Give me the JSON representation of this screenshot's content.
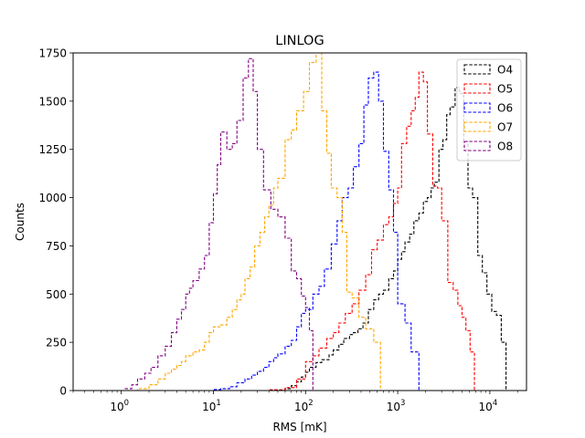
{
  "chart_data": {
    "type": "histogram",
    "title": "LINLOG",
    "xlabel": "RMS [mK]",
    "ylabel": "Counts",
    "x_scale": "log",
    "xlim": [
      0.3,
      25000
    ],
    "ylim": [
      0,
      1750
    ],
    "x_ticks": [
      {
        "value": 1,
        "base": "10",
        "exp": "0"
      },
      {
        "value": 10,
        "base": "10",
        "exp": "1"
      },
      {
        "value": 100,
        "base": "10",
        "exp": "2"
      },
      {
        "value": 1000,
        "base": "10",
        "exp": "3"
      },
      {
        "value": 10000,
        "base": "10",
        "exp": "4"
      }
    ],
    "y_ticks": [
      0,
      250,
      500,
      750,
      1000,
      1250,
      1500,
      1750
    ],
    "grid": false,
    "legend_position": "top-right",
    "line_style": "dashed step",
    "series": [
      {
        "name": "O4",
        "color": "#000000",
        "points": [
          [
            20,
            0
          ],
          [
            40,
            3
          ],
          [
            60,
            10
          ],
          [
            70,
            25
          ],
          [
            80,
            45
          ],
          [
            90,
            70
          ],
          [
            100,
            95
          ],
          [
            110,
            120
          ],
          [
            130,
            145
          ],
          [
            150,
            160
          ],
          [
            180,
            185
          ],
          [
            200,
            210
          ],
          [
            230,
            240
          ],
          [
            260,
            270
          ],
          [
            300,
            290
          ],
          [
            330,
            300
          ],
          [
            370,
            320
          ],
          [
            420,
            350
          ],
          [
            480,
            420
          ],
          [
            550,
            470
          ],
          [
            620,
            500
          ],
          [
            700,
            520
          ],
          [
            800,
            580
          ],
          [
            900,
            620
          ],
          [
            1000,
            680
          ],
          [
            1100,
            720
          ],
          [
            1200,
            770
          ],
          [
            1350,
            810
          ],
          [
            1500,
            880
          ],
          [
            1700,
            920
          ],
          [
            1900,
            980
          ],
          [
            2100,
            1000
          ],
          [
            2300,
            1050
          ],
          [
            2500,
            1080
          ],
          [
            2800,
            1250
          ],
          [
            3100,
            1300
          ],
          [
            3400,
            1430
          ],
          [
            3700,
            1470
          ],
          [
            4200,
            1570
          ],
          [
            4700,
            1540
          ],
          [
            5200,
            1290
          ],
          [
            5800,
            1050
          ],
          [
            6500,
            1000
          ],
          [
            7400,
            700
          ],
          [
            8300,
            610
          ],
          [
            9300,
            500
          ],
          [
            10500,
            410
          ],
          [
            11800,
            390
          ],
          [
            13300,
            250
          ],
          [
            15000,
            0
          ]
        ]
      },
      {
        "name": "O5",
        "color": "#ff0000",
        "points": [
          [
            20,
            0
          ],
          [
            40,
            4
          ],
          [
            60,
            15
          ],
          [
            80,
            60
          ],
          [
            100,
            150
          ],
          [
            120,
            180
          ],
          [
            140,
            220
          ],
          [
            170,
            270
          ],
          [
            200,
            300
          ],
          [
            230,
            350
          ],
          [
            270,
            400
          ],
          [
            320,
            450
          ],
          [
            380,
            520
          ],
          [
            450,
            600
          ],
          [
            520,
            730
          ],
          [
            600,
            780
          ],
          [
            700,
            860
          ],
          [
            800,
            900
          ],
          [
            900,
            970
          ],
          [
            1000,
            1050
          ],
          [
            1100,
            1280
          ],
          [
            1250,
            1370
          ],
          [
            1400,
            1450
          ],
          [
            1550,
            1520
          ],
          [
            1700,
            1650
          ],
          [
            1900,
            1600
          ],
          [
            2100,
            1330
          ],
          [
            2400,
            1060
          ],
          [
            2700,
            1050
          ],
          [
            3000,
            880
          ],
          [
            3500,
            560
          ],
          [
            4000,
            520
          ],
          [
            4500,
            440
          ],
          [
            5000,
            380
          ],
          [
            5500,
            310
          ],
          [
            6100,
            200
          ],
          [
            6800,
            0
          ]
        ]
      },
      {
        "name": "O6",
        "color": "#0000ff",
        "points": [
          [
            5,
            0
          ],
          [
            10,
            5
          ],
          [
            12,
            10
          ],
          [
            15,
            20
          ],
          [
            18,
            40
          ],
          [
            22,
            60
          ],
          [
            26,
            80
          ],
          [
            30,
            100
          ],
          [
            35,
            120
          ],
          [
            40,
            150
          ],
          [
            45,
            170
          ],
          [
            50,
            190
          ],
          [
            60,
            230
          ],
          [
            70,
            260
          ],
          [
            80,
            330
          ],
          [
            90,
            400
          ],
          [
            100,
            420
          ],
          [
            120,
            500
          ],
          [
            140,
            540
          ],
          [
            160,
            630
          ],
          [
            190,
            760
          ],
          [
            220,
            880
          ],
          [
            250,
            1000
          ],
          [
            290,
            1050
          ],
          [
            330,
            1160
          ],
          [
            380,
            1280
          ],
          [
            430,
            1480
          ],
          [
            480,
            1620
          ],
          [
            550,
            1650
          ],
          [
            620,
            1500
          ],
          [
            700,
            1240
          ],
          [
            800,
            1040
          ],
          [
            900,
            820
          ],
          [
            1000,
            450
          ],
          [
            1200,
            350
          ],
          [
            1400,
            200
          ],
          [
            1700,
            0
          ]
        ]
      },
      {
        "name": "O7",
        "color": "#ffa500",
        "points": [
          [
            1,
            0
          ],
          [
            1.5,
            10
          ],
          [
            2,
            30
          ],
          [
            2.5,
            60
          ],
          [
            3,
            90
          ],
          [
            3.5,
            110
          ],
          [
            4,
            130
          ],
          [
            4.5,
            150
          ],
          [
            5,
            180
          ],
          [
            6,
            200
          ],
          [
            7,
            210
          ],
          [
            8,
            250
          ],
          [
            9,
            300
          ],
          [
            10,
            330
          ],
          [
            12,
            340
          ],
          [
            14,
            380
          ],
          [
            16,
            420
          ],
          [
            18,
            470
          ],
          [
            20,
            500
          ],
          [
            22,
            580
          ],
          [
            25,
            640
          ],
          [
            28,
            750
          ],
          [
            32,
            820
          ],
          [
            36,
            900
          ],
          [
            40,
            960
          ],
          [
            45,
            1050
          ],
          [
            50,
            1100
          ],
          [
            60,
            1300
          ],
          [
            70,
            1350
          ],
          [
            80,
            1450
          ],
          [
            95,
            1550
          ],
          [
            110,
            1700
          ],
          [
            130,
            1750
          ],
          [
            150,
            1450
          ],
          [
            170,
            1230
          ],
          [
            190,
            1050
          ],
          [
            220,
            1000
          ],
          [
            250,
            820
          ],
          [
            280,
            510
          ],
          [
            320,
            480
          ],
          [
            380,
            380
          ],
          [
            450,
            320
          ],
          [
            550,
            250
          ],
          [
            650,
            0
          ]
        ]
      },
      {
        "name": "O8",
        "color": "#800080",
        "points": [
          [
            0.9,
            0
          ],
          [
            1.1,
            10
          ],
          [
            1.3,
            30
          ],
          [
            1.5,
            60
          ],
          [
            1.8,
            90
          ],
          [
            2.1,
            120
          ],
          [
            2.5,
            180
          ],
          [
            3,
            230
          ],
          [
            3.5,
            300
          ],
          [
            4,
            370
          ],
          [
            4.5,
            420
          ],
          [
            5,
            500
          ],
          [
            5.5,
            530
          ],
          [
            6,
            570
          ],
          [
            7,
            630
          ],
          [
            8,
            700
          ],
          [
            9,
            870
          ],
          [
            10,
            1020
          ],
          [
            11,
            1170
          ],
          [
            12,
            1340
          ],
          [
            14,
            1250
          ],
          [
            16,
            1280
          ],
          [
            18,
            1400
          ],
          [
            21,
            1620
          ],
          [
            24,
            1720
          ],
          [
            27,
            1550
          ],
          [
            30,
            1250
          ],
          [
            35,
            1040
          ],
          [
            42,
            940
          ],
          [
            50,
            900
          ],
          [
            60,
            790
          ],
          [
            70,
            620
          ],
          [
            80,
            580
          ],
          [
            90,
            490
          ],
          [
            100,
            430
          ],
          [
            110,
            310
          ],
          [
            120,
            0
          ]
        ]
      }
    ]
  }
}
